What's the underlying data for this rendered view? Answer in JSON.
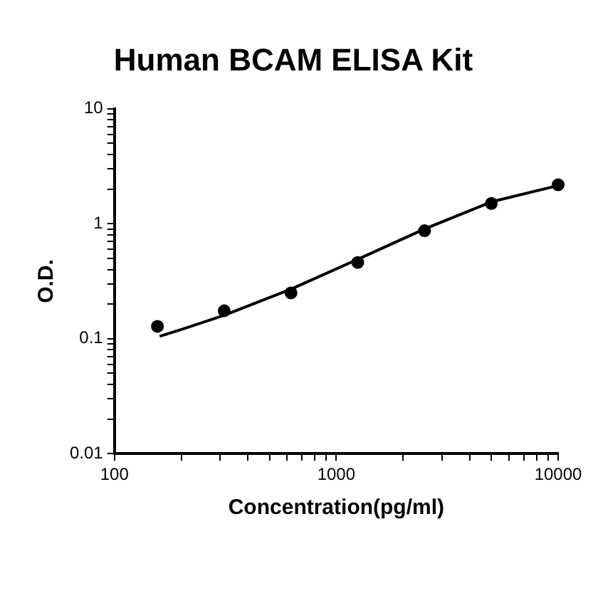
{
  "chart_data": {
    "type": "scatter",
    "title": "Human BCAM ELISA Kit",
    "xlabel": "Concentration(pg/ml)",
    "ylabel": "O.D.",
    "log": "xy",
    "grid": false,
    "legend": false,
    "marker": "circle",
    "xlim": [
      100,
      10000
    ],
    "ylim": [
      0.01,
      10
    ],
    "xticks": [
      100,
      {
        "value": 200,
        "label": null
      },
      {
        "value": 300,
        "label": null
      },
      {
        "value": 400,
        "label": null
      },
      {
        "value": 500,
        "label": null
      },
      {
        "value": 600,
        "label": null
      },
      {
        "value": 700,
        "label": null
      },
      {
        "value": 800,
        "label": null
      },
      {
        "value": 900,
        "label": null
      },
      1000,
      {
        "value": 2000,
        "label": null
      },
      {
        "value": 3000,
        "label": null
      },
      {
        "value": 4000,
        "label": null
      },
      {
        "value": 5000,
        "label": null
      },
      {
        "value": 6000,
        "label": null
      },
      {
        "value": 7000,
        "label": null
      },
      {
        "value": 8000,
        "label": null
      },
      {
        "value": 9000,
        "label": null
      },
      10000
    ],
    "yticks": [
      0.01,
      {
        "value": 0.02,
        "label": null
      },
      {
        "value": 0.03,
        "label": null
      },
      {
        "value": 0.04,
        "label": null
      },
      {
        "value": 0.05,
        "label": null
      },
      {
        "value": 0.06,
        "label": null
      },
      {
        "value": 0.07,
        "label": null
      },
      {
        "value": 0.08,
        "label": null
      },
      {
        "value": 0.09,
        "label": null
      },
      0.1,
      {
        "value": 0.2,
        "label": null
      },
      {
        "value": 0.3,
        "label": null
      },
      {
        "value": 0.4,
        "label": null
      },
      {
        "value": 0.5,
        "label": null
      },
      {
        "value": 0.6,
        "label": null
      },
      {
        "value": 0.7,
        "label": null
      },
      {
        "value": 0.8,
        "label": null
      },
      {
        "value": 0.9,
        "label": null
      },
      1,
      {
        "value": 2,
        "label": null
      },
      {
        "value": 3,
        "label": null
      },
      {
        "value": 4,
        "label": null
      },
      {
        "value": 5,
        "label": null
      },
      {
        "value": 6,
        "label": null
      },
      {
        "value": 7,
        "label": null
      },
      {
        "value": 8,
        "label": null
      },
      {
        "value": 9,
        "label": null
      },
      10
    ],
    "series": [
      {
        "color": "#000000",
        "x": [
          156.25,
          312.5,
          625,
          1250,
          2500,
          5000,
          10000
        ],
        "values": [
          0.128,
          0.175,
          0.25,
          0.46,
          0.87,
          1.5,
          2.18
        ]
      },
      {
        "type": "line",
        "color": "#000000",
        "marker": "none",
        "line_style": "solid",
        "x": [
          160,
          200,
          312.5,
          625,
          1250,
          2500,
          5000,
          10000
        ],
        "values": [
          0.105,
          0.12,
          0.16,
          0.27,
          0.49,
          0.9,
          1.55,
          2.15
        ]
      }
    ]
  }
}
